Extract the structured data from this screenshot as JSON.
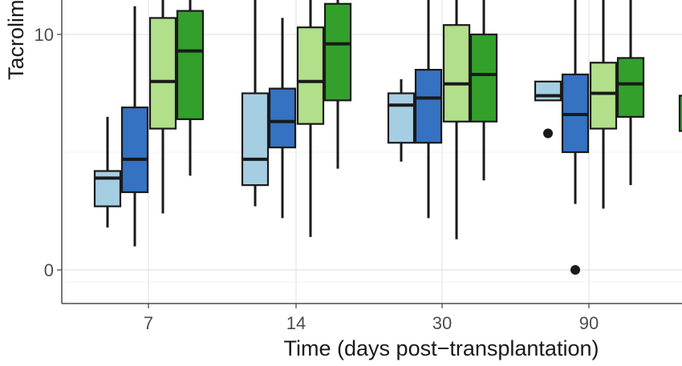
{
  "chart_data": {
    "type": "boxplot",
    "title": "",
    "xlabel": "Time (days post−transplantation)",
    "ylabel": "Tacrolim",
    "ylim": [
      -1.4,
      11.5
    ],
    "y_ticks": [
      0,
      10
    ],
    "grid": true,
    "legend": "none",
    "categories": [
      "7",
      "14",
      "30",
      "90"
    ],
    "series": [
      {
        "color": "#a6cee3",
        "boxes": [
          {
            "category": "7",
            "whisker_low": 1.8,
            "q1": 2.7,
            "median": 3.9,
            "q3": 4.2,
            "whisker_high": 6.5,
            "outliers": []
          },
          {
            "category": "14",
            "whisker_low": 2.7,
            "q1": 3.6,
            "median": 4.7,
            "q3": 7.5,
            "whisker_high": 11.5,
            "outliers": []
          },
          {
            "category": "30",
            "whisker_low": 4.6,
            "q1": 5.4,
            "median": 7.0,
            "q3": 7.5,
            "whisker_high": 8.1,
            "outliers": []
          },
          {
            "category": "90",
            "whisker_low": 7.2,
            "q1": 7.2,
            "median": 7.4,
            "q3": 8.0,
            "whisker_high": 8.0,
            "outliers": [
              5.8
            ]
          }
        ]
      },
      {
        "color": "#3572c2",
        "boxes": [
          {
            "category": "7",
            "whisker_low": 1.0,
            "q1": 3.3,
            "median": 4.7,
            "q3": 6.9,
            "whisker_high": 11.2,
            "outliers": []
          },
          {
            "category": "14",
            "whisker_low": 2.2,
            "q1": 5.2,
            "median": 6.3,
            "q3": 7.7,
            "whisker_high": 10.7,
            "outliers": []
          },
          {
            "category": "30",
            "whisker_low": 2.2,
            "q1": 5.4,
            "median": 7.3,
            "q3": 8.5,
            "whisker_high": 11.5,
            "outliers": []
          },
          {
            "category": "90",
            "whisker_low": 2.8,
            "q1": 5.0,
            "median": 6.6,
            "q3": 8.3,
            "whisker_high": 11.5,
            "outliers": [
              0
            ]
          }
        ]
      },
      {
        "color": "#b2df8a",
        "boxes": [
          {
            "category": "7",
            "whisker_low": 2.4,
            "q1": 6.0,
            "median": 8.0,
            "q3": 10.7,
            "whisker_high": 11.5,
            "outliers": []
          },
          {
            "category": "14",
            "whisker_low": 1.4,
            "q1": 6.2,
            "median": 8.0,
            "q3": 10.3,
            "whisker_high": 11.5,
            "outliers": []
          },
          {
            "category": "30",
            "whisker_low": 1.3,
            "q1": 6.3,
            "median": 7.9,
            "q3": 10.4,
            "whisker_high": 11.5,
            "outliers": []
          },
          {
            "category": "90",
            "whisker_low": 2.6,
            "q1": 6.0,
            "median": 7.5,
            "q3": 8.8,
            "whisker_high": 11.5,
            "outliers": []
          }
        ]
      },
      {
        "color": "#33a02c",
        "boxes": [
          {
            "category": "7",
            "whisker_low": 4.0,
            "q1": 6.4,
            "median": 9.3,
            "q3": 11.0,
            "whisker_high": 11.5,
            "outliers": []
          },
          {
            "category": "14",
            "whisker_low": 4.3,
            "q1": 7.2,
            "median": 9.6,
            "q3": 11.3,
            "whisker_high": 11.5,
            "outliers": []
          },
          {
            "category": "30",
            "whisker_low": 3.8,
            "q1": 6.3,
            "median": 8.3,
            "q3": 10.0,
            "whisker_high": 11.5,
            "outliers": []
          },
          {
            "category": "90",
            "whisker_low": 3.6,
            "q1": 6.5,
            "median": 7.9,
            "q3": 9.0,
            "whisker_high": 11.5,
            "outliers": []
          }
        ]
      }
    ]
  }
}
